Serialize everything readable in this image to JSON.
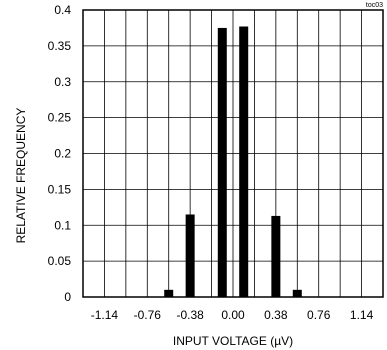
{
  "chart_data": {
    "type": "bar",
    "title": "",
    "corner_label": "toc03",
    "xlabel": "INPUT VOLTAGE (µV)",
    "ylabel": "RELATIVE FREQUENCY",
    "xlim": [
      -1.33,
      1.33
    ],
    "ylim": [
      0,
      0.4
    ],
    "x_ticks": [
      -1.14,
      -0.76,
      -0.38,
      0.0,
      0.38,
      0.76,
      1.14
    ],
    "x_tick_labels": [
      "-1.14",
      "-0.76",
      "-0.38",
      "0.00",
      "0.38",
      "0.76",
      "1.14"
    ],
    "y_ticks": [
      0,
      0.05,
      0.1,
      0.15,
      0.2,
      0.25,
      0.3,
      0.35,
      0.4
    ],
    "y_tick_labels": [
      "0",
      "0.05",
      "0.1",
      "0.15",
      "0.2",
      "0.25",
      "0.3",
      "0.35",
      "0.4"
    ],
    "grid": true,
    "x": [
      -0.57,
      -0.38,
      -0.095,
      0.095,
      0.38,
      0.57
    ],
    "values": [
      0.01,
      0.115,
      0.375,
      0.377,
      0.113,
      0.01
    ],
    "bar_color": "#000000",
    "grid_color": "#000000"
  }
}
